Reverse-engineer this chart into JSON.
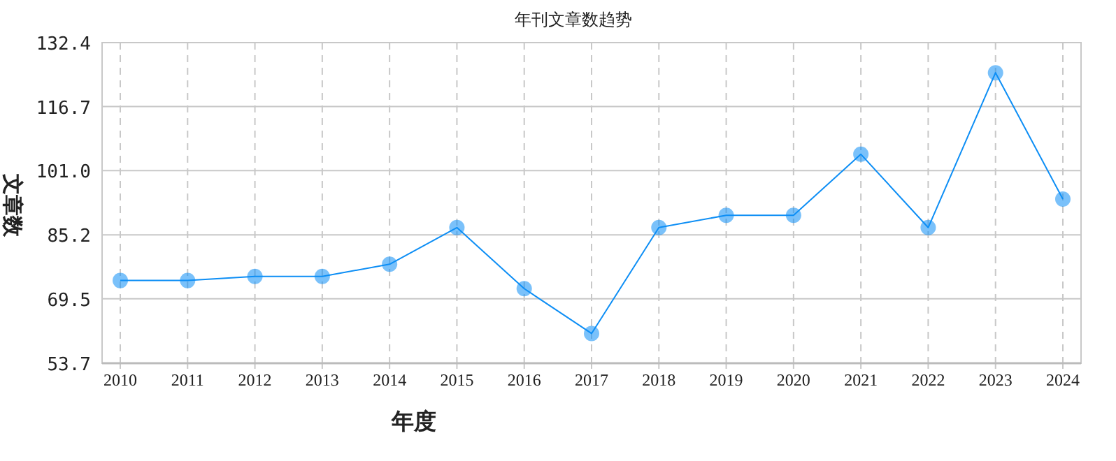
{
  "chart_data": {
    "type": "line",
    "title": "年刊文章数趋势",
    "xlabel": "年度",
    "ylabel": "文章数",
    "categories": [
      "2010",
      "2011",
      "2012",
      "2013",
      "2014",
      "2015",
      "2016",
      "2017",
      "2018",
      "2019",
      "2020",
      "2021",
      "2022",
      "2023",
      "2024"
    ],
    "series": [
      {
        "color": "#0d8ef5",
        "values": [
          74,
          74,
          75,
          75,
          78,
          87,
          72,
          61,
          87,
          90,
          90,
          105,
          87,
          125,
          94
        ]
      }
    ],
    "ylim": [
      53.7,
      132.4
    ],
    "yticks": [
      {
        "value": 53.7,
        "label": "53.7"
      },
      {
        "value": 69.5,
        "label": "69.5"
      },
      {
        "value": 85.2,
        "label": "85.2"
      },
      {
        "value": 101.0,
        "label": "101.0"
      },
      {
        "value": 116.7,
        "label": "116.7"
      },
      {
        "value": 132.4,
        "label": "132.4"
      }
    ],
    "grid": true,
    "marker": "circle",
    "line_style": "solid"
  }
}
